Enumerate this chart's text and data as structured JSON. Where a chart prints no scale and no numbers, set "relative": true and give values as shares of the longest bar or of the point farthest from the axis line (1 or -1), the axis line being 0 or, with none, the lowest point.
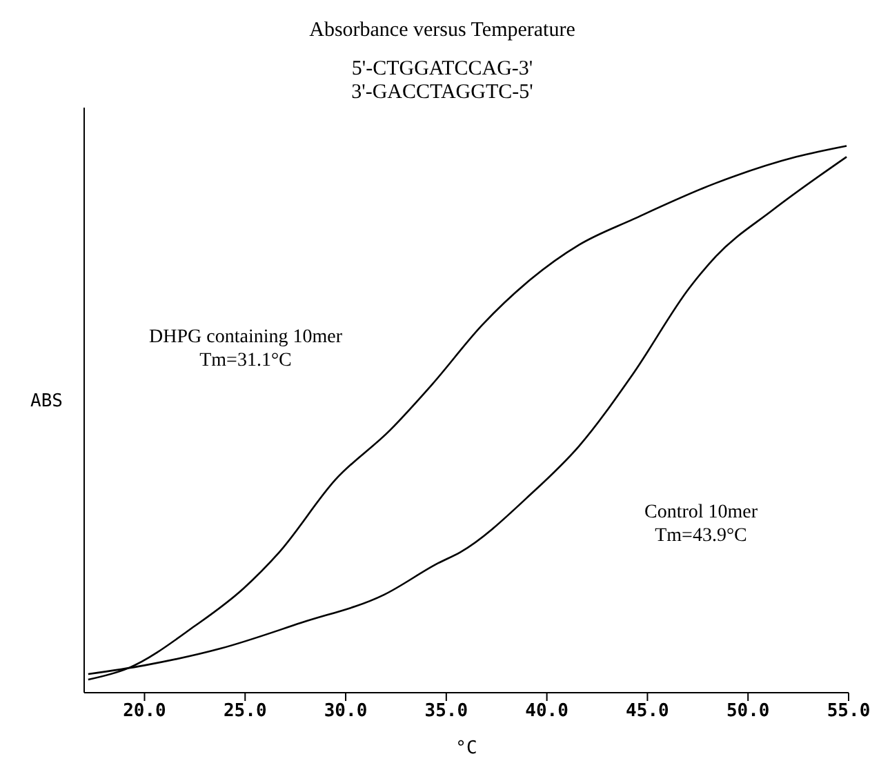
{
  "chart_data": {
    "type": "line",
    "title": "Absorbance versus Temperature",
    "subtitle": "5'-CTGGATCCAG-3'\n3'-GACCTAGGTC-5'",
    "xlabel": "°C",
    "ylabel": "ABS",
    "relative": true,
    "tick_labels": "x",
    "grid": false,
    "marker": "none",
    "line_style": "solid",
    "xlim": [
      17,
      55
    ],
    "xticks": [
      {
        "value": 20,
        "label": "20.0"
      },
      {
        "value": 25,
        "label": "25.0"
      },
      {
        "value": 30,
        "label": "30.0"
      },
      {
        "value": 35,
        "label": "35.0"
      },
      {
        "value": 40,
        "label": "40.0"
      },
      {
        "value": 45,
        "label": "45.0"
      },
      {
        "value": 50,
        "label": "50.0"
      },
      {
        "value": 55,
        "label": "55.0"
      }
    ],
    "annotations": [
      "DHPG containing 10mer\nTm=31.1°C",
      "Control 10mer\nTm=43.9°C"
    ],
    "series": [
      {
        "color": "#000000",
        "x": [
          17.2,
          19.2,
          22.5,
          24.9,
          26.7,
          29.5,
          32.2,
          34.3,
          36.8,
          39.2,
          41.6,
          44.3,
          48.4,
          52.4,
          54.9
        ],
        "values": [
          0.024,
          0.045,
          0.122,
          0.19,
          0.257,
          0.39,
          0.48,
          0.564,
          0.673,
          0.756,
          0.819,
          0.866,
          0.932,
          0.98,
          1.0
        ]
      },
      {
        "color": "#000000",
        "x": [
          17.2,
          20.0,
          23.8,
          27.8,
          31.9,
          34.6,
          35.7,
          39.2,
          41.6,
          44.3,
          47.1,
          48.4,
          51.2,
          54.9
        ],
        "values": [
          0.034,
          0.05,
          0.081,
          0.128,
          0.179,
          0.237,
          0.257,
          0.363,
          0.451,
          0.584,
          0.741,
          0.798,
          0.882,
          0.98
        ]
      }
    ]
  }
}
